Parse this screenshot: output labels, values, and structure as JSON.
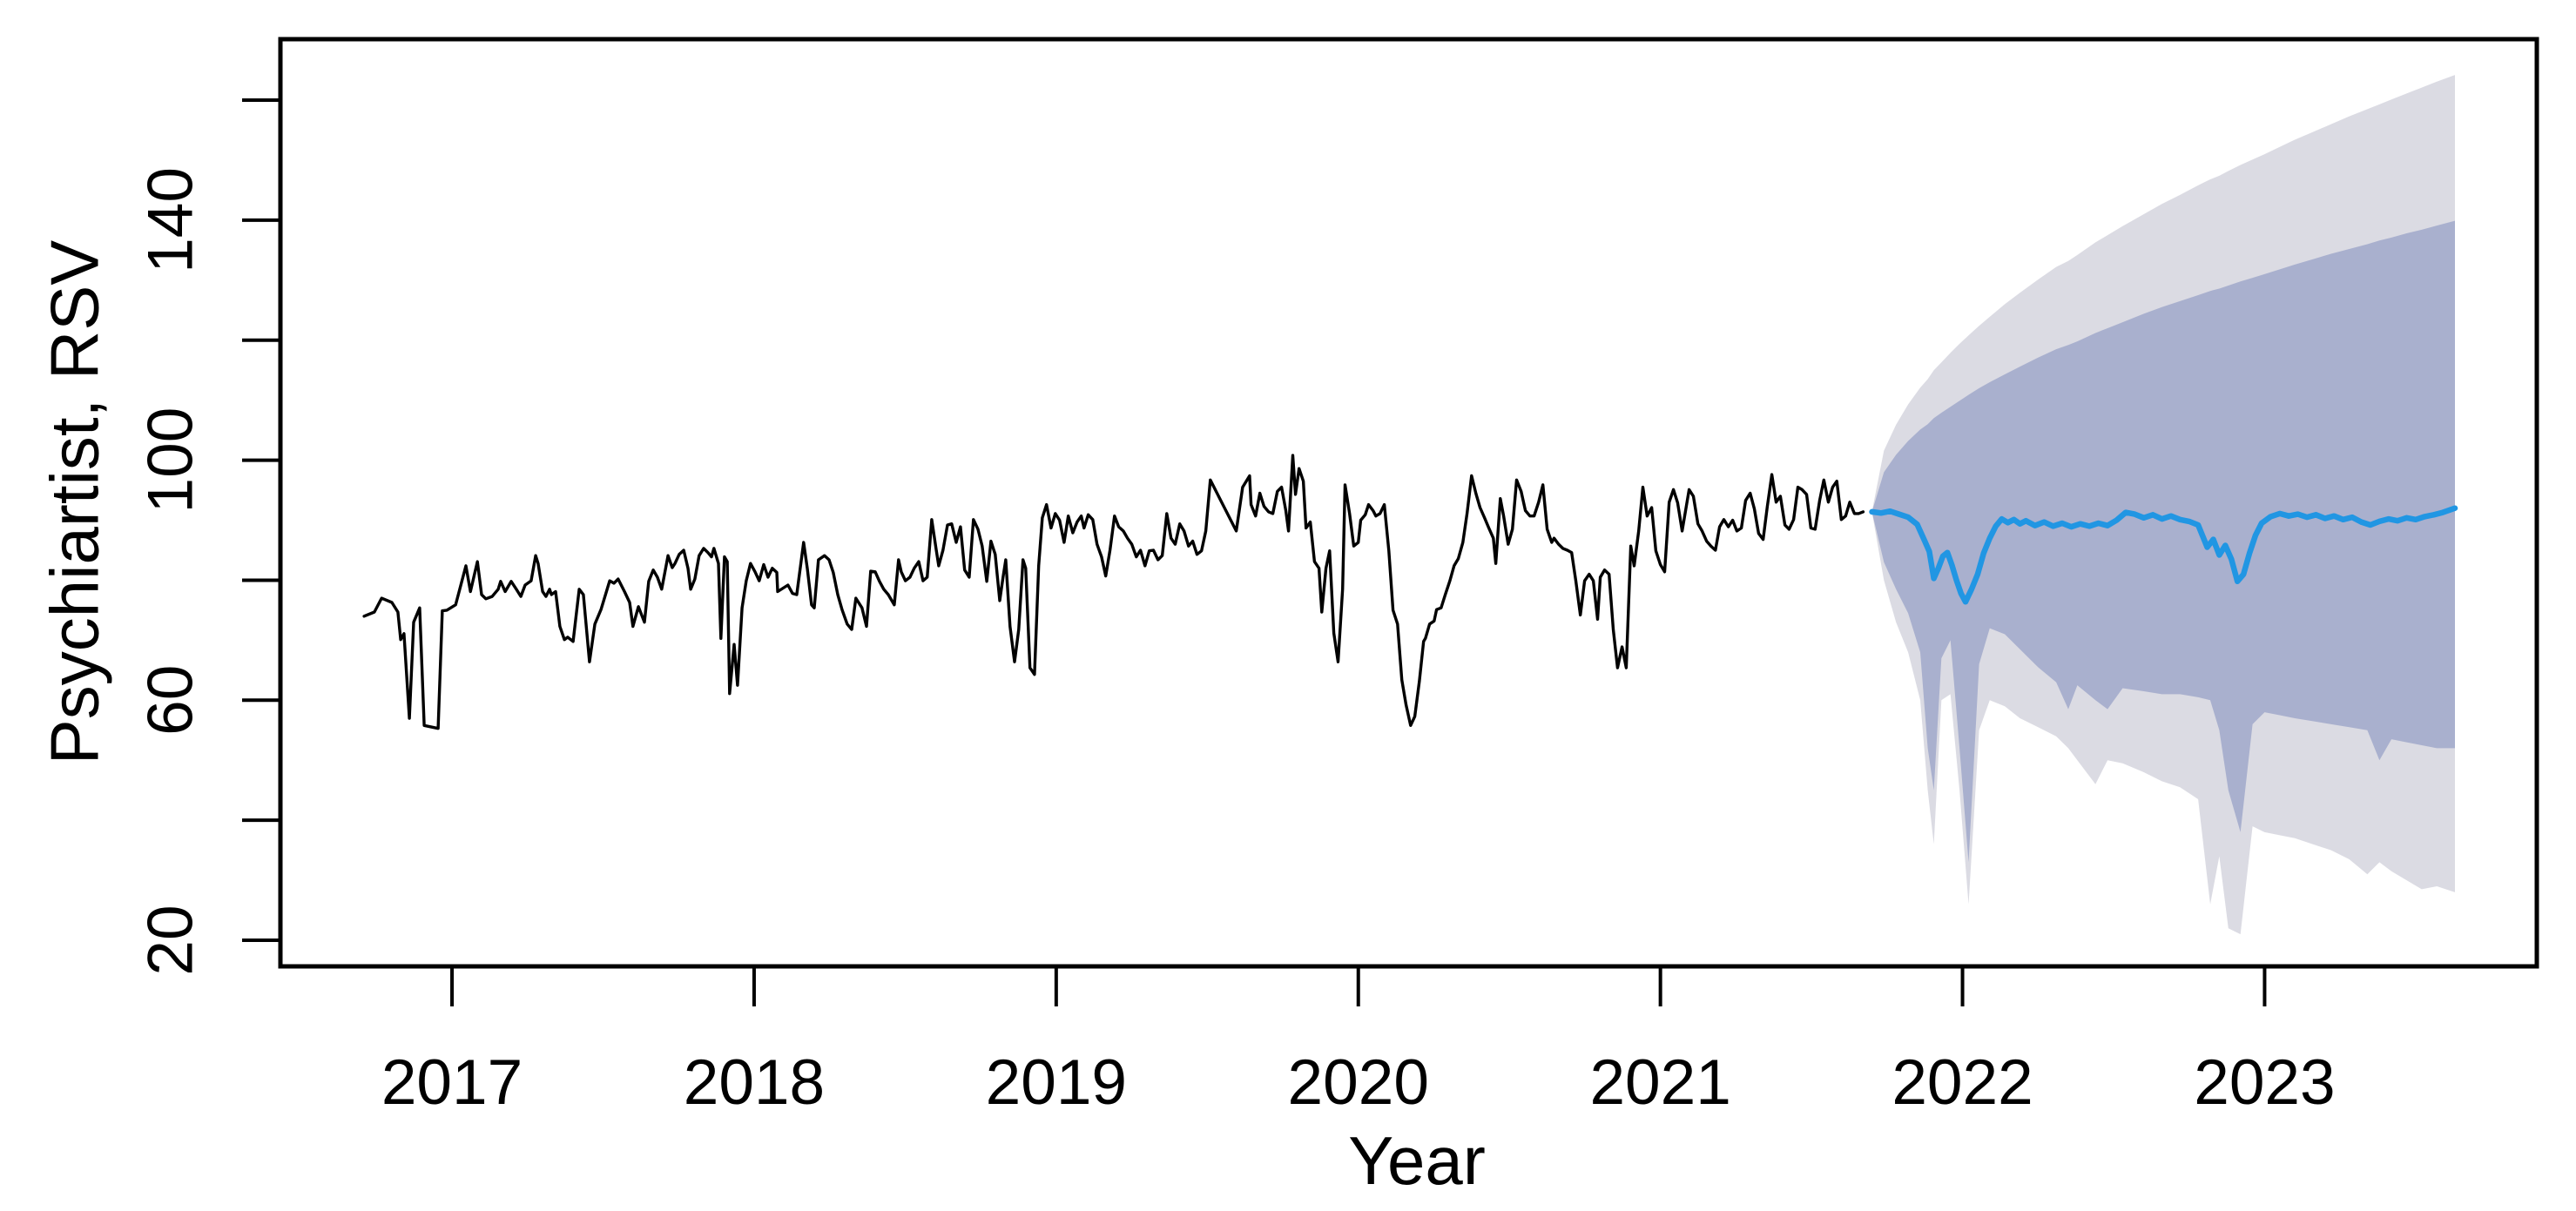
{
  "page": {
    "background": "#ffffff"
  },
  "chart_data": {
    "type": "line",
    "title": "",
    "xlabel": "Year",
    "ylabel": "Psychiartist, RSV",
    "xlim": [
      2016.432,
      2023.901
    ],
    "ylim": [
      15.65,
      170.16
    ],
    "x_ticks": [
      2017,
      2018,
      2019,
      2020,
      2021,
      2022,
      2023
    ],
    "y_ticks": [
      20,
      40,
      60,
      80,
      100,
      120,
      140,
      160
    ],
    "y_labeled_ticks": [
      20,
      60,
      100,
      140
    ],
    "grid": false,
    "legend_position": "none",
    "colors": {
      "observed": "#000000",
      "forecast_mean": "#2196E3",
      "interval_80": "#A9B0CE",
      "interval_95": "#DBDBE3",
      "axis": "#000000",
      "background": "#ffffff"
    },
    "series": [
      {
        "name": "observed",
        "color": "#000000",
        "x": [
          2016.709,
          2016.743,
          2016.767,
          2016.801,
          2016.821,
          2016.83,
          2016.841,
          2016.859,
          2016.873,
          2016.893,
          2016.908,
          2016.954,
          2016.968,
          2016.983,
          2017.012,
          2017.046,
          2017.061,
          2017.084,
          2017.098,
          2017.112,
          2017.133,
          2017.153,
          2017.161,
          2017.176,
          2017.196,
          2017.213,
          2017.228,
          2017.242,
          2017.262,
          2017.277,
          2017.285,
          2017.3,
          2017.311,
          2017.323,
          2017.329,
          2017.343,
          2017.357,
          2017.372,
          2017.383,
          2017.401,
          2017.421,
          2017.435,
          2017.455,
          2017.473,
          2017.493,
          2017.522,
          2017.536,
          2017.55,
          2017.571,
          2017.588,
          2017.599,
          2017.617,
          2017.637,
          2017.651,
          2017.666,
          2017.68,
          2017.694,
          2017.715,
          2017.729,
          2017.738,
          2017.752,
          2017.767,
          2017.781,
          2017.79,
          2017.804,
          2017.818,
          2017.833,
          2017.847,
          2017.859,
          2017.867,
          2017.882,
          2017.89,
          2017.902,
          2017.911,
          2017.919,
          2017.934,
          2017.945,
          2017.96,
          2017.974,
          2017.988,
          2018.003,
          2018.017,
          2018.032,
          2018.046,
          2018.06,
          2018.075,
          2018.078,
          2018.112,
          2018.127,
          2018.141,
          2018.164,
          2018.176,
          2018.19,
          2018.199,
          2018.213,
          2018.233,
          2018.248,
          2018.262,
          2018.277,
          2018.291,
          2018.308,
          2018.323,
          2018.337,
          2018.357,
          2018.372,
          2018.386,
          2018.401,
          2018.415,
          2018.429,
          2018.444,
          2018.464,
          2018.478,
          2018.487,
          2018.501,
          2018.516,
          2018.53,
          2018.545,
          2018.559,
          2018.573,
          2018.588,
          2018.602,
          2018.611,
          2018.625,
          2018.64,
          2018.654,
          2018.669,
          2018.683,
          2018.697,
          2018.712,
          2018.726,
          2018.741,
          2018.755,
          2018.77,
          2018.784,
          2018.798,
          2018.813,
          2018.824,
          2018.833,
          2018.847,
          2018.862,
          2018.876,
          2018.89,
          2018.899,
          2018.913,
          2018.928,
          2018.942,
          2018.954,
          2018.968,
          2018.983,
          2018.997,
          2019.011,
          2019.026,
          2019.04,
          2019.055,
          2019.069,
          2019.083,
          2019.092,
          2019.106,
          2019.121,
          2019.135,
          2019.15,
          2019.164,
          2019.178,
          2019.193,
          2019.207,
          2019.222,
          2019.236,
          2019.25,
          2019.265,
          2019.279,
          2019.294,
          2019.308,
          2019.322,
          2019.337,
          2019.351,
          2019.366,
          2019.38,
          2019.394,
          2019.409,
          2019.423,
          2019.438,
          2019.452,
          2019.466,
          2019.481,
          2019.495,
          2019.51,
          2019.596,
          2019.617,
          2019.64,
          2019.645,
          2019.66,
          2019.674,
          2019.688,
          2019.703,
          2019.717,
          2019.732,
          2019.746,
          2019.76,
          2019.769,
          2019.783,
          2019.792,
          2019.804,
          2019.818,
          2019.827,
          2019.841,
          2019.855,
          2019.87,
          2019.879,
          2019.893,
          2019.905,
          2019.919,
          2019.933,
          2019.948,
          2019.956,
          2019.971,
          2019.985,
          2020.0,
          2020.008,
          2020.023,
          2020.034,
          2020.049,
          2020.058,
          2020.072,
          2020.086,
          2020.101,
          2020.115,
          2020.13,
          2020.144,
          2020.158,
          2020.173,
          2020.187,
          2020.202,
          2020.216,
          2020.222,
          2020.236,
          2020.251,
          2020.259,
          2020.274,
          2020.288,
          2020.303,
          2020.317,
          2020.331,
          2020.346,
          2020.36,
          2020.375,
          2020.389,
          2020.403,
          2020.418,
          2020.432,
          2020.447,
          2020.455,
          2020.47,
          2020.481,
          2020.496,
          2020.51,
          2020.524,
          2020.539,
          2020.553,
          2020.568,
          2020.582,
          2020.597,
          2020.611,
          2020.625,
          2020.64,
          2020.648,
          2020.663,
          2020.677,
          2020.692,
          2020.706,
          2020.72,
          2020.735,
          2020.749,
          2020.764,
          2020.778,
          2020.792,
          2020.801,
          2020.815,
          2020.83,
          2020.844,
          2020.858,
          2020.873,
          2020.887,
          2020.902,
          2020.913,
          2020.928,
          2020.942,
          2020.956,
          2020.971,
          2020.985,
          2021.0,
          2021.014,
          2021.029,
          2021.043,
          2021.057,
          2021.072,
          2021.095,
          2021.109,
          2021.124,
          2021.138,
          2021.153,
          2021.167,
          2021.182,
          2021.196,
          2021.21,
          2021.225,
          2021.239,
          2021.253,
          2021.268,
          2021.282,
          2021.297,
          2021.311,
          2021.325,
          2021.34,
          2021.354,
          2021.369,
          2021.383,
          2021.397,
          2021.412,
          2021.426,
          2021.441,
          2021.455,
          2021.469,
          2021.484,
          2021.498,
          2021.512,
          2021.527,
          2021.541,
          2021.556,
          2021.57,
          2021.584,
          2021.599,
          2021.613,
          2021.627,
          2021.642,
          2021.656,
          2021.671
        ],
        "y": [
          74.0,
          74.7,
          77.0,
          76.3,
          74.7,
          70.1,
          71.1,
          57.0,
          73.0,
          75.4,
          55.8,
          55.3,
          74.9,
          75.0,
          75.9,
          82.4,
          78.1,
          83.1,
          77.6,
          76.9,
          77.3,
          78.5,
          79.8,
          78.1,
          79.8,
          78.5,
          77.3,
          79.2,
          79.9,
          84.1,
          82.8,
          78.1,
          77.3,
          78.5,
          77.6,
          78.1,
          72.3,
          70.1,
          70.5,
          69.8,
          78.5,
          77.6,
          66.4,
          72.7,
          75.1,
          79.9,
          79.5,
          80.2,
          78.1,
          76.3,
          72.3,
          75.6,
          73.0,
          79.8,
          81.7,
          80.5,
          78.5,
          84.1,
          82.1,
          82.8,
          84.3,
          85.0,
          82.0,
          78.5,
          80.2,
          84.1,
          85.3,
          84.6,
          83.9,
          85.3,
          82.8,
          70.3,
          83.9,
          83.1,
          61.1,
          69.3,
          62.5,
          75.4,
          79.9,
          82.8,
          81.4,
          79.9,
          82.6,
          80.5,
          82.0,
          81.3,
          78.1,
          79.2,
          77.8,
          77.6,
          86.3,
          82.0,
          75.9,
          75.4,
          83.4,
          84.1,
          83.4,
          81.3,
          77.6,
          75.1,
          72.7,
          71.8,
          77.0,
          75.4,
          72.3,
          81.5,
          81.4,
          79.8,
          78.5,
          77.6,
          75.9,
          83.4,
          81.4,
          79.9,
          80.5,
          82.0,
          83.1,
          79.9,
          80.5,
          90.1,
          85.3,
          82.4,
          85.0,
          89.2,
          89.4,
          86.3,
          88.9,
          81.7,
          80.5,
          90.1,
          88.5,
          85.7,
          79.8,
          86.5,
          84.3,
          76.6,
          80.5,
          83.4,
          72.3,
          66.4,
          71.8,
          83.4,
          82.0,
          65.4,
          64.3,
          82.4,
          90.4,
          92.6,
          88.7,
          91.1,
          90.0,
          86.3,
          90.7,
          87.9,
          89.7,
          90.7,
          88.7,
          90.9,
          90.1,
          86.0,
          83.9,
          80.7,
          85.0,
          90.7,
          88.9,
          88.2,
          87.0,
          86.0,
          83.9,
          85.0,
          82.4,
          84.9,
          85.0,
          83.4,
          84.1,
          91.1,
          87.0,
          86.0,
          89.4,
          88.2,
          85.7,
          86.5,
          84.3,
          84.9,
          88.2,
          96.7,
          88.2,
          95.5,
          97.4,
          92.6,
          90.7,
          94.5,
          92.3,
          91.4,
          91.1,
          94.8,
          95.5,
          91.6,
          88.2,
          100.8,
          94.3,
          98.6,
          96.5,
          88.7,
          89.7,
          83.1,
          82.0,
          74.7,
          82.0,
          84.9,
          71.2,
          66.4,
          78.5,
          95.9,
          91.1,
          85.7,
          86.3,
          90.0,
          90.9,
          92.6,
          91.6,
          90.7,
          91.1,
          92.6,
          84.9,
          75.0,
          72.7,
          63.4,
          59.2,
          55.8,
          57.3,
          63.1,
          69.8,
          70.3,
          72.7,
          73.2,
          75.1,
          75.4,
          77.6,
          79.9,
          82.4,
          83.6,
          86.3,
          91.1,
          97.4,
          94.5,
          92.1,
          90.4,
          88.7,
          87.0,
          82.8,
          93.6,
          90.7,
          86.0,
          88.5,
          96.7,
          94.8,
          91.6,
          90.7,
          90.7,
          93.0,
          95.9,
          88.5,
          86.3,
          87.0,
          86.0,
          85.3,
          85.0,
          84.6,
          79.9,
          74.2,
          79.9,
          81.0,
          79.9,
          73.5,
          80.5,
          81.7,
          81.0,
          71.8,
          65.4,
          68.9,
          65.4,
          85.7,
          82.4,
          88.2,
          95.5,
          90.7,
          92.1,
          84.9,
          82.6,
          81.4,
          93.0,
          95.1,
          92.9,
          88.2,
          95.1,
          94.0,
          89.4,
          88.2,
          86.5,
          85.7,
          85.0,
          88.9,
          90.1,
          88.9,
          90.0,
          88.2,
          88.7,
          93.3,
          94.5,
          91.9,
          87.8,
          86.8,
          92.3,
          97.6,
          93.0,
          94.0,
          89.2,
          88.5,
          90.1,
          95.5,
          95.1,
          94.3,
          88.7,
          88.5,
          93.3,
          96.7,
          93.0,
          95.5,
          96.5,
          90.1,
          90.7,
          93.0,
          91.1,
          91.1,
          91.4
        ]
      },
      {
        "name": "forecast-mean",
        "color": "#2196E3",
        "x": [
          2021.7,
          2021.73,
          2021.76,
          2021.79,
          2021.82,
          2021.85,
          2021.875,
          2021.89,
          2021.905,
          2021.92,
          2021.935,
          2021.95,
          2021.965,
          2021.98,
          2021.995,
          2022.01,
          2022.03,
          2022.05,
          2022.07,
          2022.09,
          2022.11,
          2022.13,
          2022.15,
          2022.17,
          2022.19,
          2022.21,
          2022.24,
          2022.27,
          2022.3,
          2022.33,
          2022.36,
          2022.39,
          2022.42,
          2022.45,
          2022.48,
          2022.51,
          2022.54,
          2022.57,
          2022.6,
          2022.63,
          2022.66,
          2022.69,
          2022.72,
          2022.75,
          2022.78,
          2022.81,
          2022.83,
          2022.85,
          2022.87,
          2022.89,
          2022.91,
          2022.93,
          2022.95,
          2022.97,
          2022.99,
          2023.02,
          2023.05,
          2023.08,
          2023.11,
          2023.14,
          2023.17,
          2023.2,
          2023.23,
          2023.26,
          2023.29,
          2023.32,
          2023.35,
          2023.38,
          2023.41,
          2023.44,
          2023.47,
          2023.5,
          2023.53,
          2023.56,
          2023.59,
          2023.63
        ],
        "y": [
          91.4,
          91.2,
          91.5,
          91.0,
          90.5,
          89.3,
          86.5,
          84.8,
          80.3,
          82.0,
          84.0,
          84.6,
          82.5,
          80.0,
          77.8,
          76.4,
          78.5,
          81.0,
          84.5,
          87.0,
          89.0,
          90.2,
          89.6,
          90.1,
          89.4,
          89.9,
          89.1,
          89.7,
          89.0,
          89.5,
          88.9,
          89.4,
          89.0,
          89.5,
          89.1,
          90.0,
          91.3,
          91.0,
          90.4,
          90.9,
          90.2,
          90.7,
          90.1,
          89.8,
          89.2,
          85.5,
          86.8,
          84.2,
          85.8,
          83.5,
          79.8,
          81.0,
          84.5,
          87.5,
          89.5,
          90.6,
          91.1,
          90.7,
          91.0,
          90.5,
          90.9,
          90.3,
          90.7,
          90.1,
          90.5,
          89.7,
          89.2,
          89.8,
          90.2,
          89.9,
          90.4,
          90.1,
          90.6,
          90.9,
          91.3,
          92.0
        ]
      }
    ],
    "intervals": {
      "note": "prediction interval fan around forecast-mean",
      "x": [
        2021.7,
        2021.74,
        2021.78,
        2021.82,
        2021.86,
        2021.885,
        2021.905,
        2021.93,
        2021.96,
        2021.99,
        2022.02,
        2022.055,
        2022.09,
        2022.14,
        2022.19,
        2022.25,
        2022.31,
        2022.35,
        2022.38,
        2022.44,
        2022.48,
        2022.53,
        2022.6,
        2022.66,
        2022.72,
        2022.78,
        2022.82,
        2022.85,
        2022.88,
        2022.92,
        2022.96,
        2023.0,
        2023.05,
        2023.1,
        2023.16,
        2023.22,
        2023.28,
        2023.34,
        2023.38,
        2023.42,
        2023.47,
        2023.52,
        2023.57,
        2023.63
      ],
      "lo95": [
        91.4,
        80,
        73,
        68,
        60,
        45,
        36,
        60,
        61,
        45,
        26,
        55,
        60,
        59,
        57,
        55.5,
        54,
        52,
        50,
        46,
        50,
        49.5,
        48,
        46.5,
        45.5,
        43.5,
        26,
        34,
        22,
        21,
        39,
        38,
        37.5,
        37,
        36,
        35,
        33.5,
        31,
        33,
        31.5,
        30,
        28.5,
        29,
        28
      ],
      "lo80": [
        91.4,
        83,
        78.5,
        74.5,
        68,
        52,
        45,
        67,
        70,
        52,
        33,
        66,
        72,
        71,
        68.5,
        65.5,
        63,
        58.5,
        62.5,
        60,
        58.5,
        62,
        61.5,
        61,
        61,
        60.5,
        60,
        55,
        45,
        38,
        56,
        58,
        57.5,
        57,
        56.5,
        56,
        55.5,
        55,
        50,
        53.5,
        53,
        52.5,
        52,
        52
      ],
      "hi80": [
        91.4,
        98.0,
        100.9,
        103.2,
        105.1,
        106.0,
        107.0,
        107.9,
        108.9,
        109.9,
        110.9,
        112.0,
        113.0,
        114.3,
        115.6,
        117.1,
        118.5,
        119.2,
        119.8,
        121.2,
        122.0,
        123.0,
        124.4,
        125.5,
        126.5,
        127.5,
        128.2,
        128.6,
        129.1,
        129.8,
        130.4,
        131.0,
        131.8,
        132.6,
        133.5,
        134.4,
        135.2,
        136.0,
        136.6,
        137.1,
        137.8,
        138.4,
        139.1,
        139.9
      ],
      "hi95": [
        91.4,
        101.6,
        105.9,
        109.3,
        112.1,
        113.5,
        115.0,
        116.3,
        117.9,
        119.4,
        120.8,
        122.4,
        123.9,
        126.0,
        127.9,
        130.1,
        132.2,
        133.2,
        134.2,
        136.3,
        137.5,
        139.0,
        141.0,
        142.7,
        144.2,
        145.8,
        146.8,
        147.4,
        148.2,
        149.2,
        150.1,
        151.0,
        152.2,
        153.4,
        154.7,
        156.0,
        157.3,
        158.5,
        159.3,
        160.1,
        161.1,
        162.1,
        163.1,
        164.2
      ],
      "color_80": "#A9B0CE",
      "color_95": "#DBDBE3"
    }
  }
}
